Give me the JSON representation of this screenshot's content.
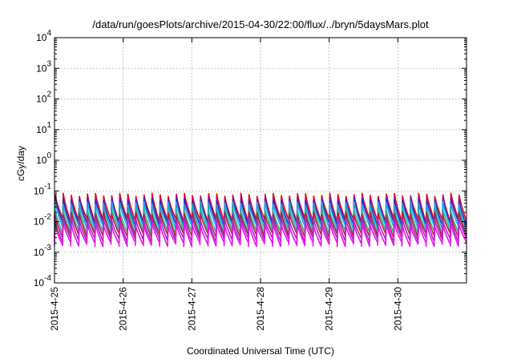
{
  "chart_data": {
    "type": "line",
    "title": "/data/run/goesPlots/archive/2015-04-30/22:00/flux/../bryn/5daysMars.plot",
    "xlabel": "Coordinated Universal Time (UTC)",
    "ylabel": "cGy/day",
    "x_ticks": [
      "2015-4-25",
      "2015-4-26",
      "2015-4-27",
      "2015-4-28",
      "2015-4-29",
      "2015-4-30"
    ],
    "x_range": [
      "2015-04-25 00:00",
      "2015-05-01 00:00"
    ],
    "y_scale": "log",
    "ylim": [
      0.0001,
      10000
    ],
    "y_ticks": [
      {
        "base": "10",
        "exp": "-4"
      },
      {
        "base": "10",
        "exp": "-3"
      },
      {
        "base": "10",
        "exp": "-2"
      },
      {
        "base": "10",
        "exp": "-1"
      },
      {
        "base": "10",
        "exp": "0"
      },
      {
        "base": "10",
        "exp": "1"
      },
      {
        "base": "10",
        "exp": "2"
      },
      {
        "base": "10",
        "exp": "3"
      },
      {
        "base": "10",
        "exp": "4"
      }
    ],
    "grid": true,
    "legend": "none",
    "sawtooth_cycles_per_day": 8.5,
    "series": [
      {
        "color": "#e8001a",
        "peak": 0.075,
        "trough": 0.011
      },
      {
        "color": "#2d2ad8",
        "peak": 0.055,
        "trough": 0.0085
      },
      {
        "color": "#1fa8d8",
        "peak": 0.04,
        "trough": 0.0065
      },
      {
        "color": "#26b89a",
        "peak": 0.025,
        "trough": 0.0045
      },
      {
        "color": "#c4183c",
        "peak": 0.018,
        "trough": 0.0035
      },
      {
        "color": "#9a2fc0",
        "peak": 0.012,
        "trough": 0.0025
      },
      {
        "color": "#e815e8",
        "peak": 0.008,
        "trough": 0.0018
      }
    ]
  }
}
